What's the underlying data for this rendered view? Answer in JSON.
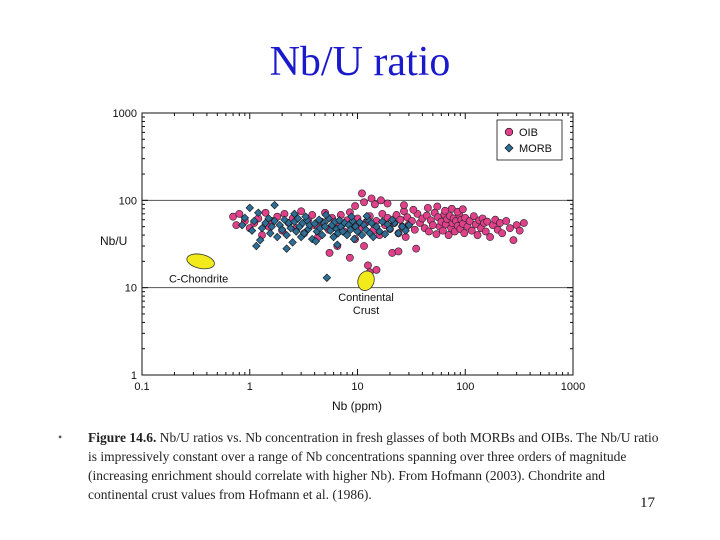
{
  "slide": {
    "title": "Nb/U ratio",
    "bullet": "•",
    "caption_lead": "Figure 14.6.",
    "caption_body": " Nb/U ratios vs. Nb concentration in fresh glasses of both MORBs and OIBs. The Nb/U ratio is impressively constant over a range of Nb concentrations spanning over three orders of magnitude (increasing enrichment should correlate with higher Nb). From Hofmann (2003). Chondrite and continental crust values from Hofmann et al. (1986).",
    "page_number": "17"
  },
  "colors": {
    "oib": "#e0408a",
    "morb": "#2e6e96",
    "annotation_fill": "#f2ea1a",
    "reference_line": "#555555",
    "title": "#1a1acc"
  },
  "chart_data": {
    "type": "scatter",
    "title": "",
    "xlabel": "Nb (ppm)",
    "ylabel": "Nb/U",
    "xscale": "log",
    "yscale": "log",
    "xlim": [
      0.1,
      1000
    ],
    "ylim": [
      1,
      1000
    ],
    "x_ticks": [
      "0.1",
      "1",
      "10",
      "100",
      "1000"
    ],
    "y_ticks": [
      "1",
      "10",
      "100",
      "1000"
    ],
    "grid": false,
    "reference_lines_y": [
      10,
      100
    ],
    "legend_position": "top-right",
    "series": [
      {
        "name": "OIB",
        "marker": "circle",
        "points": [
          [
            0.7,
            65
          ],
          [
            0.75,
            52
          ],
          [
            0.8,
            70
          ],
          [
            0.9,
            58
          ],
          [
            1.0,
            48
          ],
          [
            1.1,
            55
          ],
          [
            1.2,
            62
          ],
          [
            1.3,
            40
          ],
          [
            1.4,
            72
          ],
          [
            1.5,
            50
          ],
          [
            1.6,
            58
          ],
          [
            1.8,
            65
          ],
          [
            2.0,
            45
          ],
          [
            2.1,
            70
          ],
          [
            2.3,
            55
          ],
          [
            2.5,
            62
          ],
          [
            2.7,
            48
          ],
          [
            3.0,
            75
          ],
          [
            3.2,
            42
          ],
          [
            3.5,
            60
          ],
          [
            3.8,
            68
          ],
          [
            4.0,
            52
          ],
          [
            4.3,
            38
          ],
          [
            4.6,
            57
          ],
          [
            5.0,
            72
          ],
          [
            5.4,
            46
          ],
          [
            5.8,
            63
          ],
          [
            6.2,
            55
          ],
          [
            6.6,
            50
          ],
          [
            7.0,
            68
          ],
          [
            7.5,
            44
          ],
          [
            8.0,
            59
          ],
          [
            8.5,
            73
          ],
          [
            9.0,
            52
          ],
          [
            9.5,
            36
          ],
          [
            10,
            62
          ],
          [
            10.5,
            48
          ],
          [
            11,
            120
          ],
          [
            11.5,
            30
          ],
          [
            12,
            56
          ],
          [
            12.5,
            18
          ],
          [
            13,
            66
          ],
          [
            14,
            45
          ],
          [
            15,
            58
          ],
          [
            16,
            40
          ],
          [
            17,
            70
          ],
          [
            18,
            52
          ],
          [
            19,
            63
          ],
          [
            20,
            47
          ],
          [
            21,
            25
          ],
          [
            22,
            55
          ],
          [
            23,
            68
          ],
          [
            24,
            42
          ],
          [
            25,
            60
          ],
          [
            26,
            50
          ],
          [
            27,
            75
          ],
          [
            28,
            38
          ],
          [
            29,
            64
          ],
          [
            30,
            53
          ],
          [
            32,
            58
          ],
          [
            34,
            46
          ],
          [
            35,
            28
          ],
          [
            36,
            70
          ],
          [
            38,
            55
          ],
          [
            40,
            62
          ],
          [
            42,
            48
          ],
          [
            44,
            67
          ],
          [
            46,
            44
          ],
          [
            48,
            59
          ],
          [
            50,
            52
          ],
          [
            52,
            72
          ],
          [
            54,
            41
          ],
          [
            56,
            64
          ],
          [
            58,
            50
          ],
          [
            60,
            57
          ],
          [
            62,
            45
          ],
          [
            64,
            69
          ],
          [
            66,
            53
          ],
          [
            68,
            61
          ],
          [
            70,
            40
          ],
          [
            72,
            66
          ],
          [
            74,
            48
          ],
          [
            76,
            55
          ],
          [
            78,
            62
          ],
          [
            80,
            44
          ],
          [
            82,
            58
          ],
          [
            85,
            51
          ],
          [
            88,
            68
          ],
          [
            90,
            47
          ],
          [
            92,
            60
          ],
          [
            95,
            54
          ],
          [
            98,
            42
          ],
          [
            100,
            63
          ],
          [
            105,
            50
          ],
          [
            110,
            58
          ],
          [
            115,
            45
          ],
          [
            120,
            66
          ],
          [
            125,
            53
          ],
          [
            130,
            40
          ],
          [
            135,
            59
          ],
          [
            140,
            48
          ],
          [
            145,
            62
          ],
          [
            150,
            55
          ],
          [
            155,
            44
          ],
          [
            160,
            57
          ],
          [
            170,
            38
          ],
          [
            180,
            52
          ],
          [
            190,
            60
          ],
          [
            200,
            46
          ],
          [
            210,
            55
          ],
          [
            220,
            42
          ],
          [
            240,
            58
          ],
          [
            260,
            48
          ],
          [
            280,
            35
          ],
          [
            300,
            52
          ],
          [
            320,
            45
          ],
          [
            350,
            55
          ],
          [
            13,
            15
          ],
          [
            15,
            16
          ],
          [
            8.5,
            22
          ],
          [
            6.5,
            30
          ],
          [
            5.5,
            25
          ],
          [
            24,
            26
          ],
          [
            27,
            88
          ],
          [
            33,
            78
          ],
          [
            45,
            82
          ],
          [
            55,
            85
          ],
          [
            65,
            76
          ],
          [
            75,
            80
          ],
          [
            85,
            74
          ],
          [
            95,
            79
          ],
          [
            13.5,
            105
          ],
          [
            16.5,
            100
          ],
          [
            11.5,
            95
          ],
          [
            14.5,
            90
          ],
          [
            9.5,
            86
          ],
          [
            19,
            92
          ]
        ]
      },
      {
        "name": "MORB",
        "marker": "diamond",
        "points": [
          [
            0.85,
            52
          ],
          [
            0.9,
            63
          ],
          [
            1.0,
            82
          ],
          [
            1.05,
            45
          ],
          [
            1.1,
            58
          ],
          [
            1.2,
            72
          ],
          [
            1.25,
            35
          ],
          [
            1.3,
            48
          ],
          [
            1.4,
            55
          ],
          [
            1.5,
            62
          ],
          [
            1.55,
            42
          ],
          [
            1.6,
            50
          ],
          [
            1.7,
            58
          ],
          [
            1.8,
            38
          ],
          [
            1.9,
            52
          ],
          [
            2.0,
            46
          ],
          [
            2.1,
            60
          ],
          [
            2.2,
            40
          ],
          [
            2.3,
            55
          ],
          [
            2.4,
            48
          ],
          [
            2.5,
            33
          ],
          [
            2.6,
            57
          ],
          [
            2.7,
            44
          ],
          [
            2.8,
            62
          ],
          [
            2.9,
            50
          ],
          [
            3.0,
            38
          ],
          [
            3.1,
            55
          ],
          [
            3.2,
            42
          ],
          [
            3.4,
            59
          ],
          [
            3.5,
            47
          ],
          [
            3.6,
            52
          ],
          [
            3.8,
            36
          ],
          [
            4.0,
            54
          ],
          [
            4.2,
            44
          ],
          [
            4.4,
            60
          ],
          [
            4.5,
            48
          ],
          [
            4.7,
            40
          ],
          [
            4.9,
            55
          ],
          [
            5.0,
            50
          ],
          [
            5.2,
            13
          ],
          [
            5.4,
            62
          ],
          [
            5.6,
            45
          ],
          [
            5.8,
            52
          ],
          [
            6.0,
            38
          ],
          [
            6.2,
            57
          ],
          [
            6.4,
            47
          ],
          [
            6.6,
            42
          ],
          [
            6.8,
            59
          ],
          [
            7.0,
            50
          ],
          [
            7.3,
            44
          ],
          [
            7.6,
            55
          ],
          [
            8.0,
            40
          ],
          [
            8.3,
            52
          ],
          [
            8.6,
            46
          ],
          [
            9.0,
            58
          ],
          [
            9.3,
            36
          ],
          [
            9.6,
            50
          ],
          [
            10,
            44
          ],
          [
            10.5,
            56
          ],
          [
            11,
            40
          ],
          [
            11.5,
            52
          ],
          [
            12,
            46
          ],
          [
            12.5,
            60
          ],
          [
            13,
            42
          ],
          [
            13.5,
            55
          ],
          [
            14,
            38
          ],
          [
            15,
            50
          ],
          [
            16,
            44
          ],
          [
            17,
            57
          ],
          [
            18,
            41
          ],
          [
            19,
            53
          ],
          [
            20,
            47
          ],
          [
            22,
            55
          ],
          [
            24,
            42
          ],
          [
            26,
            50
          ],
          [
            28,
            45
          ],
          [
            30,
            52
          ],
          [
            1.15,
            30
          ],
          [
            2.2,
            28
          ],
          [
            3.3,
            65
          ],
          [
            4.1,
            34
          ],
          [
            6.5,
            31
          ],
          [
            8.8,
            65
          ],
          [
            12.2,
            66
          ],
          [
            21,
            60
          ],
          [
            1.7,
            88
          ],
          [
            2.6,
            70
          ],
          [
            5.1,
            68
          ]
        ]
      }
    ],
    "annotations": [
      {
        "label": "C-Chondrite",
        "x": 0.35,
        "y": 20
      },
      {
        "label": "Continental\nCrust",
        "x": 12,
        "y": 12
      }
    ]
  }
}
